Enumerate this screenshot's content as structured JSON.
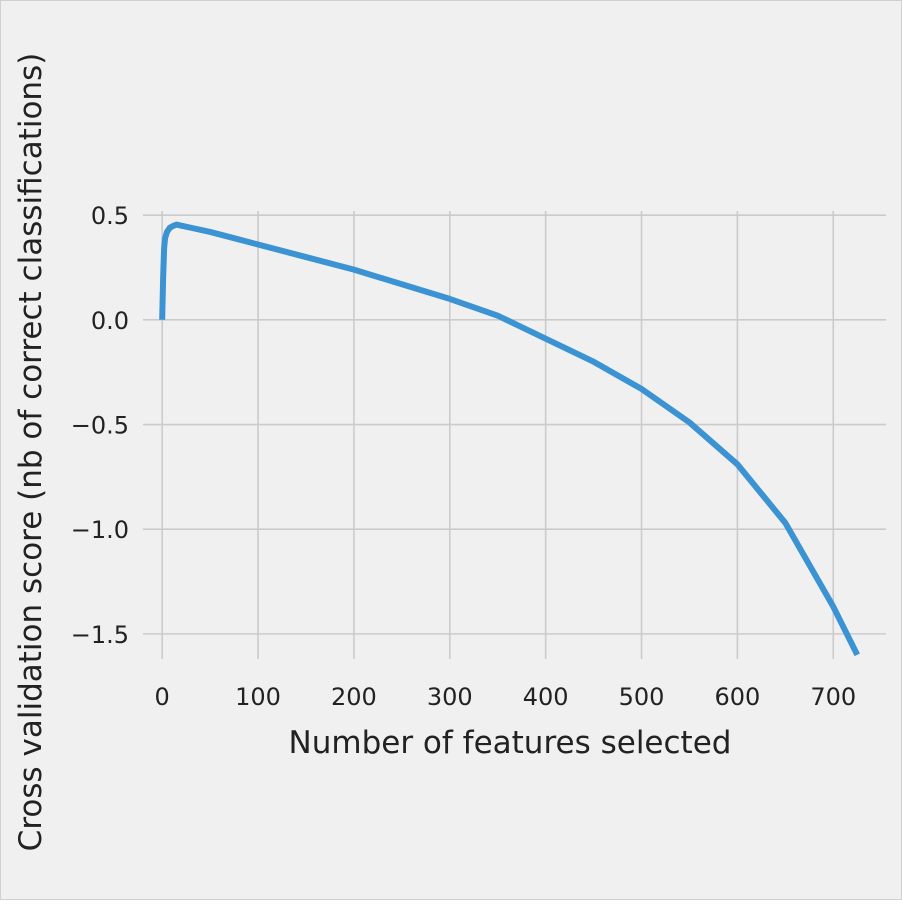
{
  "chart_data": {
    "type": "line",
    "title": "",
    "xlabel": "Number of features selected",
    "ylabel": "Cross validation score (nb of correct classifications)",
    "xlim": [
      -20,
      755
    ],
    "ylim": [
      -1.62,
      0.52
    ],
    "xticks": [
      0,
      100,
      200,
      300,
      400,
      500,
      600,
      700
    ],
    "xtick_labels": [
      "0",
      "100",
      "200",
      "300",
      "400",
      "500",
      "600",
      "700"
    ],
    "yticks": [
      0.5,
      0.0,
      -0.5,
      -1.0,
      -1.5
    ],
    "ytick_labels": [
      "0.5",
      "0.0",
      "−0.5",
      "−1.0",
      "−1.5"
    ],
    "grid": true,
    "legend": "none",
    "colors": {
      "figure_background": "#f0f0f0",
      "axes_background": "#f0f0f0",
      "grid": "#cbcbcb",
      "line": "#3b93d3",
      "text": "#222222"
    },
    "series": [
      {
        "x": [
          0,
          1,
          2,
          3,
          5,
          8,
          12,
          15,
          20,
          30,
          50,
          75,
          100,
          150,
          200,
          250,
          300,
          350,
          400,
          450,
          500,
          550,
          600,
          650,
          700,
          725
        ],
        "y": [
          0.0,
          0.2,
          0.34,
          0.39,
          0.42,
          0.44,
          0.45,
          0.455,
          0.45,
          0.44,
          0.42,
          0.39,
          0.36,
          0.3,
          0.24,
          0.17,
          0.1,
          0.02,
          -0.09,
          -0.2,
          -0.33,
          -0.49,
          -0.69,
          -0.97,
          -1.37,
          -1.6
        ]
      }
    ]
  }
}
